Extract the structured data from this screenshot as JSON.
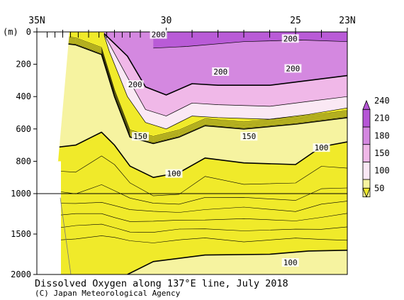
{
  "chart_data": {
    "type": "heatmap",
    "title": "Dissolved Oxygen along 137°E line, July 2018",
    "credit": "(C) Japan Meteorological Agency",
    "y_unit_label": "(m)",
    "x_axis": {
      "range": [
        35,
        23
      ],
      "tick_labels": [
        {
          "value": 35,
          "label": "35N"
        },
        {
          "value": 30,
          "label": "30"
        },
        {
          "value": 25,
          "label": "25"
        },
        {
          "value": 23,
          "label": "23N"
        }
      ]
    },
    "y_axis": {
      "upper_range": [
        0,
        1000
      ],
      "lower_range": [
        1000,
        2000
      ],
      "tick_labels": [
        {
          "value": 0,
          "label": "0"
        },
        {
          "value": 200,
          "label": "200"
        },
        {
          "value": 400,
          "label": "400"
        },
        {
          "value": 600,
          "label": "600"
        },
        {
          "value": 800,
          "label": "800"
        },
        {
          "value": 1000,
          "label": "1000"
        },
        {
          "value": 1500,
          "label": "1500"
        },
        {
          "value": 2000,
          "label": "2000"
        }
      ]
    },
    "colorbar": {
      "levels": [
        50,
        100,
        150,
        180,
        210,
        240
      ],
      "labels": [
        "50",
        "100",
        "150",
        "180",
        "210",
        "240"
      ],
      "colors": [
        "#f0ea2a",
        "#f6f3a0",
        "#fae8f4",
        "#f0b8e8",
        "#d488e0",
        "#b656d6"
      ]
    },
    "contour_labels": [
      {
        "text": "200",
        "lat": 30.3,
        "depth": 20
      },
      {
        "text": "200",
        "lat": 25.2,
        "depth": 45
      },
      {
        "text": "200",
        "lat": 27.9,
        "depth": 250
      },
      {
        "text": "200",
        "lat": 25.1,
        "depth": 230
      },
      {
        "text": "200",
        "lat": 31.2,
        "depth": 330
      },
      {
        "text": "150",
        "lat": 31.0,
        "depth": 650
      },
      {
        "text": "150",
        "lat": 26.8,
        "depth": 650
      },
      {
        "text": "100",
        "lat": 24.0,
        "depth": 720
      },
      {
        "text": "100",
        "lat": 29.7,
        "depth": 880
      },
      {
        "text": "100",
        "lat": 25.2,
        "depth": 1860
      }
    ],
    "station_ticks_lat": [
      34.6,
      34.3,
      34.0,
      33.7,
      33.4,
      33.0,
      32.6,
      32.3,
      32.0,
      31.7,
      31.4,
      31.0,
      30.0,
      29.0,
      28.0,
      27.0,
      26.0,
      25.0,
      24.0
    ],
    "color_regions": [
      {
        "class": "50-100",
        "depth_range": [
          0,
          2000
        ],
        "note": "background yellow"
      },
      {
        "class": "100-150",
        "top_boundary": [
          [
            34.6,
            60
          ],
          [
            33.5,
            80
          ],
          [
            32.5,
            140
          ],
          [
            32.0,
            400
          ],
          [
            31.4,
            650
          ],
          [
            30.5,
            690
          ],
          [
            29.5,
            650
          ],
          [
            28.5,
            580
          ],
          [
            27.0,
            600
          ],
          [
            25.0,
            570
          ],
          [
            23.0,
            530
          ]
        ],
        "bottom_boundary": [
          [
            34.6,
            720
          ],
          [
            33.5,
            700
          ],
          [
            32.5,
            620
          ],
          [
            32.0,
            700
          ],
          [
            31.4,
            830
          ],
          [
            30.5,
            900
          ],
          [
            29.5,
            870
          ],
          [
            28.5,
            780
          ],
          [
            27.0,
            810
          ],
          [
            25.0,
            820
          ],
          [
            24.0,
            710
          ],
          [
            23.0,
            680
          ]
        ]
      },
      {
        "class": "100-150 deep",
        "boundary": [
          [
            31.5,
            2000
          ],
          [
            30.5,
            1840
          ],
          [
            28.5,
            1760
          ],
          [
            26.0,
            1750
          ],
          [
            24.5,
            1710
          ],
          [
            23.0,
            1700
          ]
        ]
      },
      {
        "class": "150-180",
        "boundary": [
          [
            32.4,
            20
          ],
          [
            32.2,
            120
          ],
          [
            31.5,
            400
          ],
          [
            30.8,
            560
          ],
          [
            30.0,
            600
          ],
          [
            29.0,
            520
          ],
          [
            28.0,
            530
          ],
          [
            26.0,
            540
          ],
          [
            24.5,
            510
          ],
          [
            23.0,
            470
          ]
        ]
      },
      {
        "class": "180-210",
        "boundary": [
          [
            32.4,
            15
          ],
          [
            31.5,
            280
          ],
          [
            30.8,
            480
          ],
          [
            30.0,
            520
          ],
          [
            29.0,
            440
          ],
          [
            28.0,
            450
          ],
          [
            26.0,
            460
          ],
          [
            24.5,
            430
          ],
          [
            23.0,
            400
          ]
        ]
      },
      {
        "class": "210-240",
        "boundary": [
          [
            32.4,
            10
          ],
          [
            31.5,
            150
          ],
          [
            30.8,
            340
          ],
          [
            30.0,
            390
          ],
          [
            29.0,
            320
          ],
          [
            28.0,
            330
          ],
          [
            26.0,
            330
          ],
          [
            24.5,
            300
          ],
          [
            23.0,
            270
          ]
        ]
      },
      {
        "class": "240+",
        "boundary": [
          [
            30.5,
            100
          ],
          [
            29.2,
            90
          ],
          [
            27.0,
            60
          ],
          [
            24.8,
            50
          ],
          [
            23.0,
            60
          ]
        ]
      }
    ]
  }
}
